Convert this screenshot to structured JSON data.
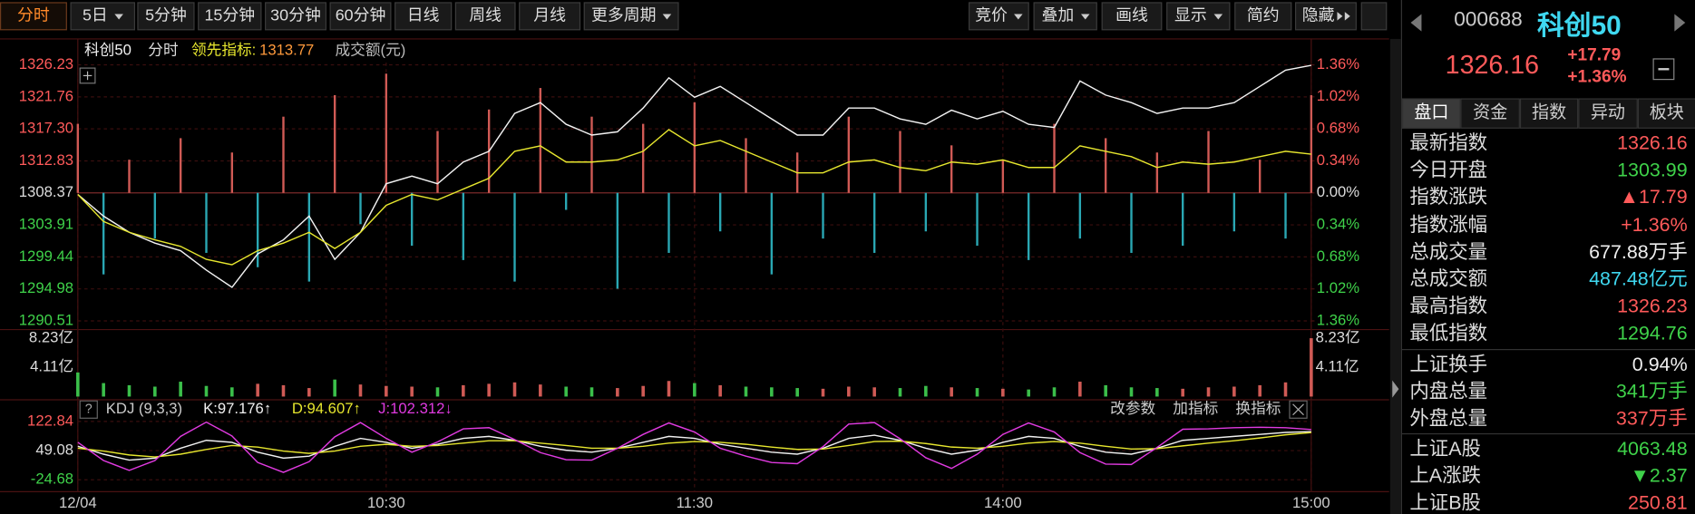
{
  "toolbar": {
    "periods": [
      "分时",
      "5日",
      "5分钟",
      "15分钟",
      "30分钟",
      "60分钟",
      "日线",
      "周线",
      "月线",
      "更多周期"
    ],
    "tools": [
      "竞价",
      "叠加",
      "画线",
      "显示",
      "简约",
      "隐藏"
    ]
  },
  "chart_data": [
    {
      "type": "line",
      "mode": "分时",
      "tick_colors": "updown",
      "x": [
        0,
        5,
        10,
        15,
        20,
        25,
        30,
        35,
        40,
        45,
        50,
        55,
        60,
        65,
        70,
        75,
        80,
        85,
        90,
        95,
        100,
        105,
        110,
        115,
        120,
        125,
        130,
        135,
        140,
        145,
        150,
        155,
        160,
        165,
        170,
        175,
        180,
        185,
        190,
        195,
        200,
        205,
        210,
        215,
        220,
        225,
        230,
        235,
        240
      ],
      "xlim": [
        0,
        240
      ],
      "xticks": [
        {
          "value": 0,
          "label": "12/04"
        },
        {
          "value": 60,
          "label": "10:30"
        },
        {
          "value": 120,
          "label": "11:30"
        },
        {
          "value": 180,
          "label": "14:00"
        },
        {
          "value": 240,
          "label": "15:00"
        }
      ],
      "ylim": [
        1290.51,
        1326.23
      ],
      "yticks": [
        1326.23,
        {
          "value": 1321.76,
          "label": "1321.76"
        },
        {
          "value": 1317.3,
          "label": "1317.30"
        },
        1312.83,
        1308.37,
        1303.91,
        1299.44,
        1294.98,
        1290.51
      ],
      "y2lim": [
        -1.36,
        1.36
      ],
      "y2ticks": [
        {
          "value": 1.36,
          "label": "1.36%"
        },
        {
          "value": 1.02,
          "label": "1.02%"
        },
        {
          "value": 0.68,
          "label": "0.68%"
        },
        {
          "value": 0.34,
          "label": "0.34%"
        },
        {
          "value": 0,
          "label": "0.00%"
        },
        {
          "value": -0.34,
          "label": "0.34%"
        },
        {
          "value": -0.68,
          "label": "0.68%"
        },
        {
          "value": -1.02,
          "label": "1.02%"
        },
        {
          "value": -1.36,
          "label": "1.36%"
        }
      ],
      "grid": true,
      "series": [
        {
          "name": "科创50",
          "type": "line",
          "color": "#f2f2f2",
          "values": [
            1308.15,
            1305.13,
            1302.87,
            1301.36,
            1300.31,
            1297.6,
            1295.2,
            1299.86,
            1301.82,
            1305.13,
            1299.1,
            1302.87,
            1309.65,
            1310.71,
            1309.65,
            1312.67,
            1314.17,
            1319.45,
            1320.96,
            1317.94,
            1316.43,
            1316.89,
            1320.2,
            1324.42,
            1321.71,
            1323.22,
            1320.96,
            1318.69,
            1316.43,
            1316.43,
            1320.2,
            1320.2,
            1318.69,
            1317.94,
            1319.9,
            1318.69,
            1319.75,
            1317.94,
            1317.49,
            1323.97,
            1322.01,
            1320.96,
            1319.45,
            1320.2,
            1320.2,
            1320.96,
            1323.22,
            1325.48,
            1326.16
          ]
        },
        {
          "name": "领先指标:",
          "type": "line",
          "color": "#e6e62e",
          "current_label": "1313.77",
          "values": [
            1308.15,
            1304.38,
            1302.87,
            1301.82,
            1300.91,
            1299.1,
            1298.35,
            1300.31,
            1301.36,
            1302.87,
            1300.61,
            1302.87,
            1306.64,
            1308.15,
            1307.39,
            1308.9,
            1310.41,
            1314.17,
            1314.93,
            1312.67,
            1312.67,
            1312.97,
            1314.17,
            1317.19,
            1314.93,
            1315.68,
            1314.17,
            1312.67,
            1311.16,
            1311.16,
            1312.67,
            1312.97,
            1311.91,
            1311.46,
            1312.67,
            1312.37,
            1312.97,
            1311.91,
            1311.91,
            1314.93,
            1314.17,
            1313.42,
            1311.91,
            1312.67,
            1312.37,
            1312.67,
            1313.42,
            1314.17,
            1313.77
          ]
        },
        {
          "name": "成交额(元)",
          "type": "bar",
          "color": "#d05a55",
          "down_color": "#2aa7b3",
          "values": [
            1318,
            1297,
            1313,
            1302,
            1316,
            1300,
            1314,
            1298,
            1319,
            1296,
            1322,
            1304,
            1325,
            1301,
            1317,
            1299,
            1320,
            1296,
            1323,
            1306,
            1319,
            1295,
            1318,
            1300,
            1321,
            1303,
            1316,
            1297,
            1314,
            1302,
            1319,
            1300,
            1317,
            1303,
            1315,
            1301,
            1313,
            1299,
            1318,
            1302,
            1316,
            1300,
            1314,
            1301,
            1317,
            1303,
            1313,
            1302,
            1322
          ]
        }
      ]
    },
    {
      "type": "bar",
      "tick_colors": "plain",
      "ylim": [
        0,
        8.23
      ],
      "yticks": [
        {
          "value": 8.23,
          "label": "8.23亿"
        },
        {
          "value": 4.11,
          "label": "4.11亿"
        }
      ],
      "series": [
        {
          "type": "volume",
          "color": "#d05a55",
          "down_color": "#3bbf4a",
          "values": [
            3.4,
            1.9,
            1.6,
            1.4,
            2.1,
            1.5,
            1.3,
            1.8,
            1.6,
            1.2,
            2.4,
            1.7,
            1.5,
            1.4,
            1.3,
            1.6,
            1.8,
            2.0,
            1.7,
            1.4,
            1.3,
            1.2,
            1.5,
            2.2,
            1.9,
            1.6,
            1.4,
            1.3,
            1.2,
            1.1,
            1.4,
            1.3,
            1.2,
            1.5,
            1.3,
            1.2,
            1.1,
            1.0,
            1.3,
            2.1,
            1.6,
            1.3,
            1.2,
            1.1,
            1.3,
            1.4,
            1.6,
            2.0,
            8.23
          ]
        }
      ]
    },
    {
      "type": "line",
      "title": "KDJ (9,3,3)",
      "buttons": [
        "改参数",
        "加指标",
        "换指标"
      ],
      "tick_colors": "updown",
      "ylim": [
        -24.68,
        122.84
      ],
      "yticks": [
        122.84,
        49.08,
        -24.68
      ],
      "series": [
        {
          "name": "K:97.176↑",
          "type": "line",
          "color": "#f0f0f0",
          "values": [
            60,
            40,
            25,
            30,
            55,
            75,
            70,
            45,
            30,
            35,
            60,
            80,
            70,
            55,
            65,
            80,
            85,
            75,
            60,
            50,
            45,
            55,
            70,
            85,
            80,
            65,
            55,
            45,
            40,
            55,
            80,
            88,
            75,
            55,
            40,
            50,
            70,
            85,
            80,
            60,
            45,
            40,
            55,
            75,
            80,
            85,
            90,
            95,
            97.176
          ]
        },
        {
          "name": "D:94.607↑",
          "type": "line",
          "color": "#e6e62e",
          "values": [
            55,
            48,
            38,
            33,
            40,
            52,
            62,
            58,
            48,
            42,
            48,
            60,
            65,
            60,
            62,
            68,
            74,
            74,
            68,
            62,
            55,
            55,
            60,
            68,
            72,
            70,
            65,
            58,
            52,
            53,
            62,
            72,
            73,
            67,
            58,
            55,
            60,
            68,
            72,
            68,
            60,
            53,
            54,
            61,
            68,
            74,
            81,
            89,
            94.607
          ]
        },
        {
          "name": "J:102.312↓",
          "type": "line",
          "color": "#e03ae0",
          "values": [
            70,
            24,
            -1,
            24,
            85,
            121,
            86,
            19,
            -6,
            21,
            84,
            120,
            80,
            45,
            71,
            104,
            107,
            77,
            44,
            26,
            25,
            55,
            90,
            119,
            96,
            55,
            35,
            19,
            16,
            59,
            116,
            120,
            79,
            31,
            4,
            40,
            90,
            119,
            96,
            44,
            15,
            14,
            57,
            103,
            104,
            107,
            108,
            107,
            102.312
          ]
        }
      ]
    }
  ],
  "quote": {
    "code": "000688",
    "name": "科创50",
    "price": "1326.16",
    "change": "+17.79",
    "change_pct": "+1.36%"
  },
  "tabs": [
    "盘口",
    "资金",
    "指数",
    "异动",
    "板块"
  ],
  "sections": [
    [
      {
        "label": "最新指数",
        "value": "1326.16",
        "color": "#ff5a5a"
      },
      {
        "label": "今日开盘",
        "value": "1303.99",
        "color": "#3fd24a"
      },
      {
        "label": "指数涨跌",
        "value": "▲17.79",
        "color": "#ff5a5a"
      },
      {
        "label": "指数涨幅",
        "value": "+1.36%",
        "color": "#ff5a5a"
      },
      {
        "label": "总成交量",
        "value": "677.88",
        "unit": "万手",
        "color": "#eeeeee"
      },
      {
        "label": "总成交额",
        "value": "487.48",
        "unit": "亿元",
        "color": "#3fd8f0"
      },
      {
        "label": "最高指数",
        "value": "1326.23",
        "color": "#ff5a5a"
      },
      {
        "label": "最低指数",
        "value": "1294.76",
        "color": "#3fd24a"
      }
    ],
    [
      {
        "label": "上证换手",
        "value": "0.94%",
        "color": "#eeeeee"
      },
      {
        "label": "内盘总量",
        "value": "341",
        "unit": "万手",
        "color": "#3fd24a"
      },
      {
        "label": "外盘总量",
        "value": "337",
        "unit": "万手",
        "color": "#ff5a5a"
      }
    ],
    [
      {
        "label": "上证A股",
        "value": "4063.48",
        "color": "#3fd24a"
      },
      {
        "label": "上A涨跌",
        "value": "▼2.37",
        "color": "#3fd24a"
      },
      {
        "label": "上证B股",
        "value": "250.81",
        "color": "#ff5a5a"
      }
    ]
  ]
}
